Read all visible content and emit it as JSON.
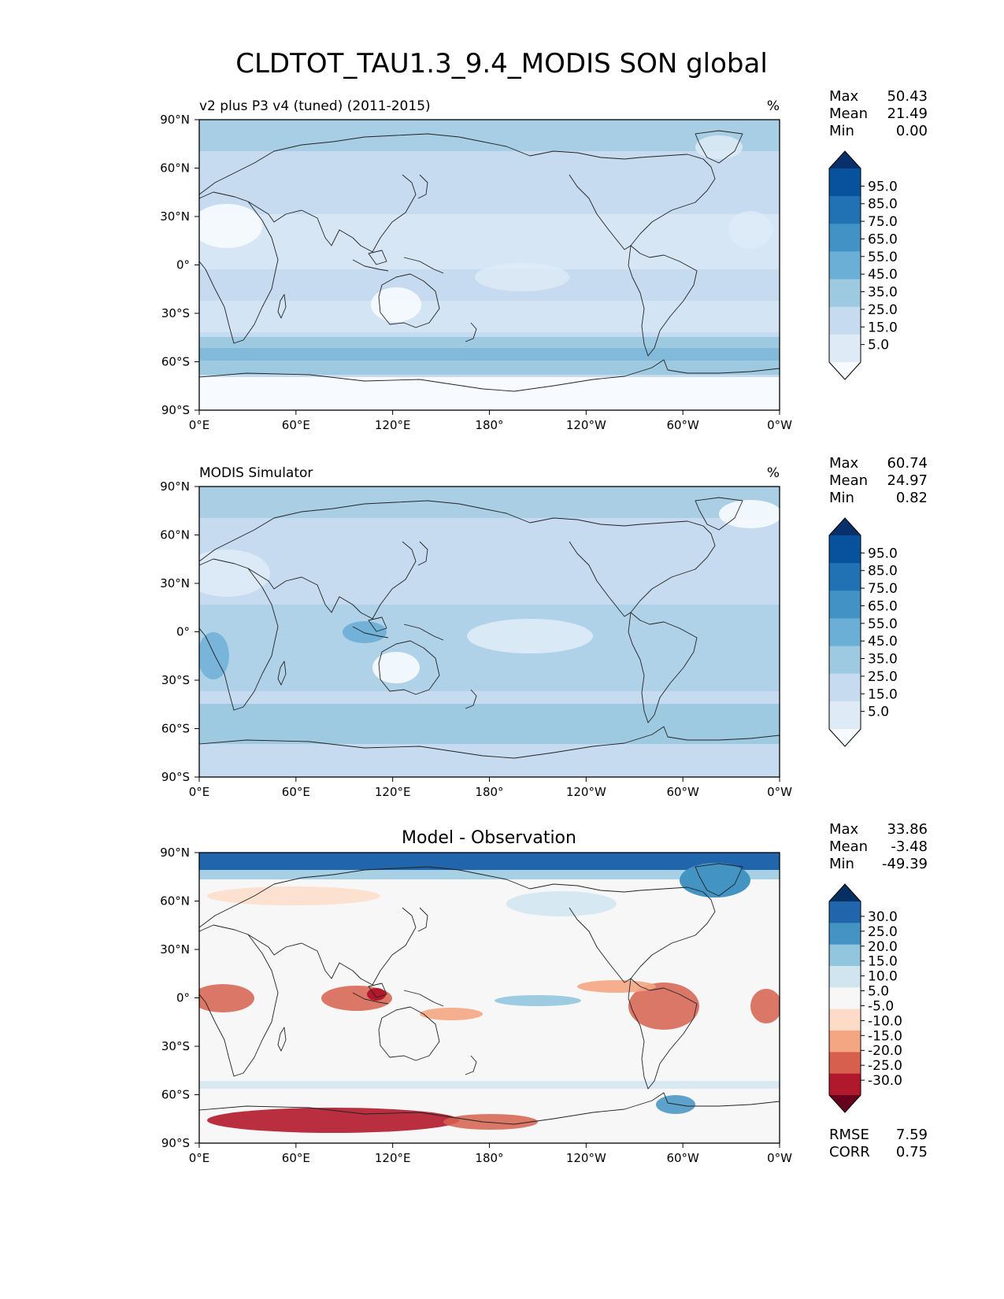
{
  "figure": {
    "title": "CLDTOT_TAU1.3_9.4_MODIS SON global"
  },
  "palettes": {
    "blues": [
      "#f7fbff",
      "#deebf7",
      "#c6dbef",
      "#9ecae1",
      "#6baed6",
      "#4292c6",
      "#2171b5",
      "#08519c",
      "#08306b"
    ],
    "diverging": [
      "#67001f",
      "#b2182b",
      "#d6604d",
      "#f4a582",
      "#fddbc7",
      "#f7f7f7",
      "#d1e5f0",
      "#92c5de",
      "#4393c3",
      "#2166ac",
      "#053061"
    ]
  },
  "x_ticks": [
    "0°E",
    "60°E",
    "120°E",
    "180°",
    "120°W",
    "60°W",
    "0°W"
  ],
  "y_ticks": [
    "90°N",
    "60°N",
    "30°N",
    "0°",
    "30°S",
    "60°S",
    "90°S"
  ],
  "chart_data": [
    {
      "type": "heatmap",
      "left_title": "v2 plus P3 v4 (tuned) (2011-2015)",
      "center_title": "",
      "units": "%",
      "stats": [
        [
          "Max",
          "50.43"
        ],
        [
          "Mean",
          "21.49"
        ],
        [
          "Min",
          "0.00"
        ]
      ],
      "colorbar": {
        "levels": [
          "95.0",
          "85.0",
          "75.0",
          "65.0",
          "55.0",
          "45.0",
          "35.0",
          "25.0",
          "15.0",
          "5.0"
        ],
        "palette": "blues",
        "extend": "both"
      },
      "xlim": [
        0,
        360
      ],
      "ylim": [
        -90,
        90
      ],
      "field_summary": {
        "max": 50.43,
        "mean": 21.49,
        "min": 0.0
      }
    },
    {
      "type": "heatmap",
      "left_title": "MODIS Simulator",
      "center_title": "",
      "units": "%",
      "stats": [
        [
          "Max",
          "60.74"
        ],
        [
          "Mean",
          "24.97"
        ],
        [
          "Min",
          "0.82"
        ]
      ],
      "colorbar": {
        "levels": [
          "95.0",
          "85.0",
          "75.0",
          "65.0",
          "55.0",
          "45.0",
          "35.0",
          "25.0",
          "15.0",
          "5.0"
        ],
        "palette": "blues",
        "extend": "both"
      },
      "xlim": [
        0,
        360
      ],
      "ylim": [
        -90,
        90
      ],
      "field_summary": {
        "max": 60.74,
        "mean": 24.97,
        "min": 0.82
      }
    },
    {
      "type": "heatmap",
      "left_title": "",
      "center_title": "Model - Observation",
      "units": "",
      "stats": [
        [
          "Max",
          "33.86"
        ],
        [
          "Mean",
          "-3.48"
        ],
        [
          "Min",
          "-49.39"
        ]
      ],
      "extra_stats": [
        [
          "RMSE",
          "7.59"
        ],
        [
          "CORR",
          "0.75"
        ]
      ],
      "colorbar": {
        "levels": [
          "30.0",
          "25.0",
          "20.0",
          "15.0",
          "10.0",
          "5.0",
          "-5.0",
          "-10.0",
          "-15.0",
          "-20.0",
          "-25.0",
          "-30.0"
        ],
        "palette": "diverging",
        "extend": "both"
      },
      "xlim": [
        0,
        360
      ],
      "ylim": [
        -90,
        90
      ],
      "field_summary": {
        "max": 33.86,
        "mean": -3.48,
        "min": -49.39,
        "rmse": 7.59,
        "corr": 0.75
      }
    }
  ]
}
